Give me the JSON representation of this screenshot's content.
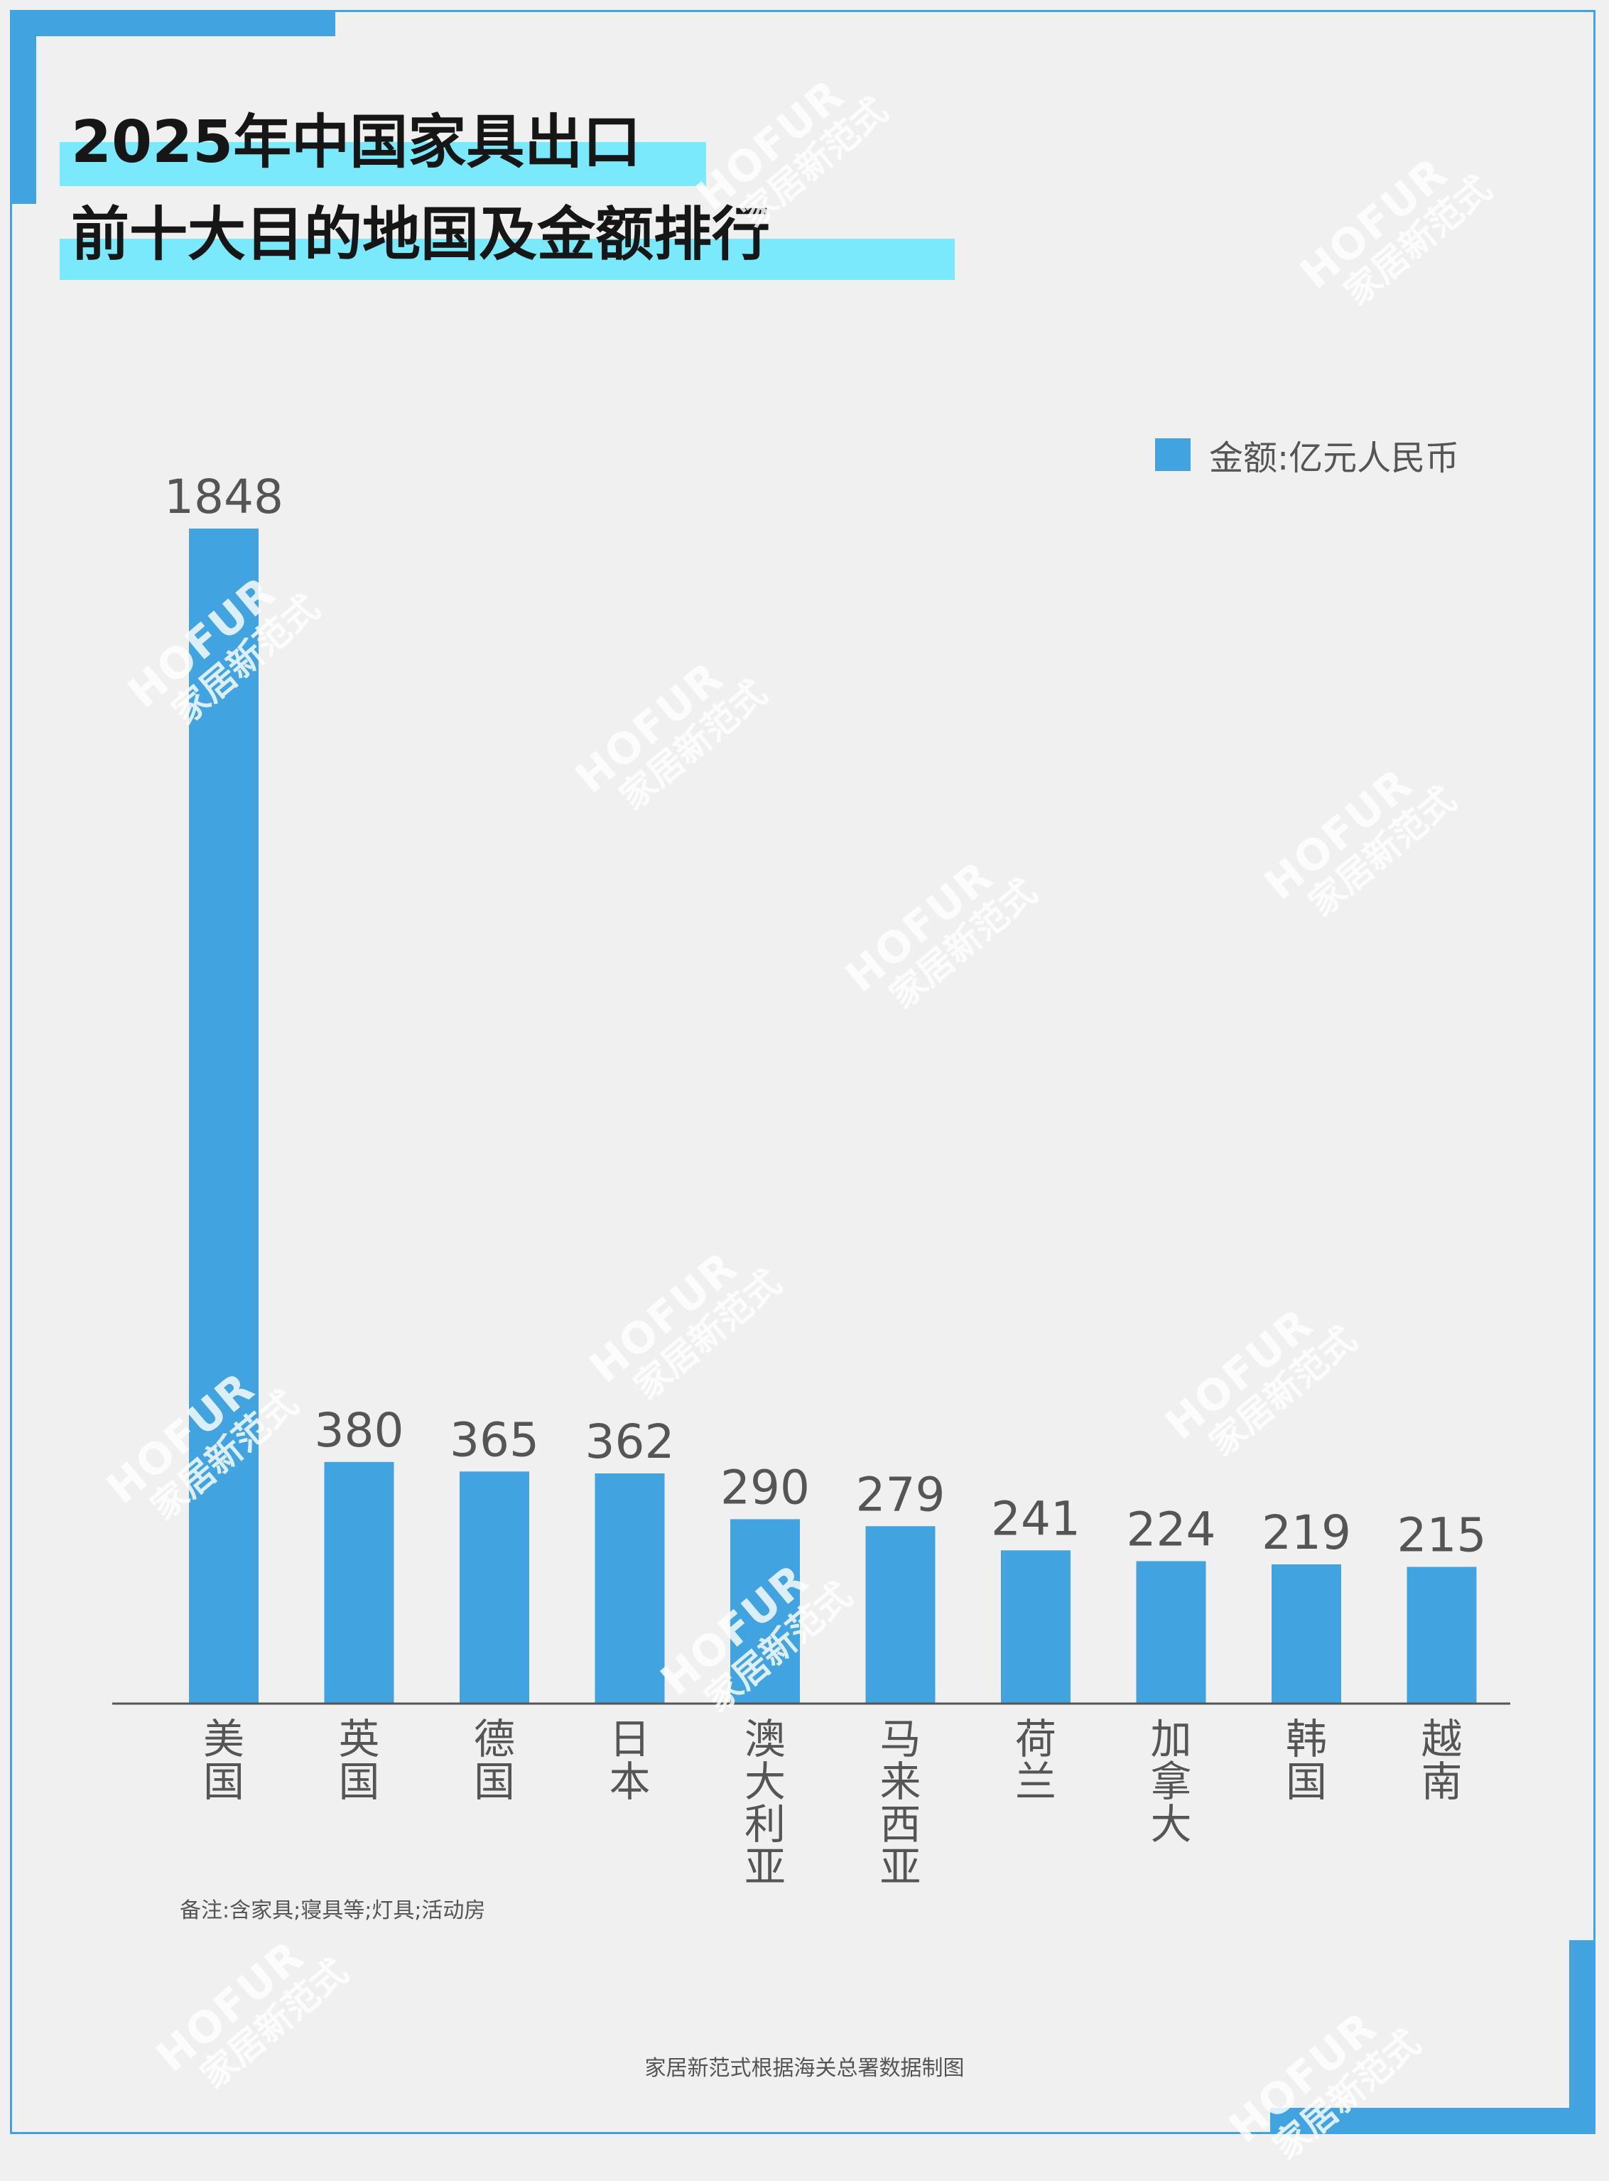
{
  "title": {
    "line1": "2025年中国家具出口",
    "line2": "前十大目的地国及金额排行"
  },
  "legend": {
    "label": "金额:亿元人民币",
    "color": "#41a3df"
  },
  "note": "备注:含家具;寝具等;灯具;活动房",
  "source": "家居新范式根据海关总署数据制图",
  "watermark": {
    "brand": "HOFUR",
    "text": "家居新范式"
  },
  "colors": {
    "bar": "#41a3df",
    "frame": "#41a3df",
    "title_highlight": "#79e9fb",
    "background": "#f0f0f0"
  },
  "chart_data": {
    "type": "bar",
    "categories": [
      "美国",
      "英国",
      "德国",
      "日本",
      "澳大利亚",
      "马来西亚",
      "荷兰",
      "加拿大",
      "韩国",
      "越南"
    ],
    "series": [
      {
        "name": "金额:亿元人民币",
        "values": [
          1848,
          380,
          365,
          362,
          290,
          279,
          241,
          224,
          219,
          215
        ]
      }
    ],
    "data_labels": [
      "1848",
      "380",
      "365",
      "362",
      "290",
      "279",
      "241",
      "224",
      "219",
      "215"
    ],
    "ylim": [
      0,
      1848
    ],
    "grid": false,
    "legend_position": "top-right"
  }
}
